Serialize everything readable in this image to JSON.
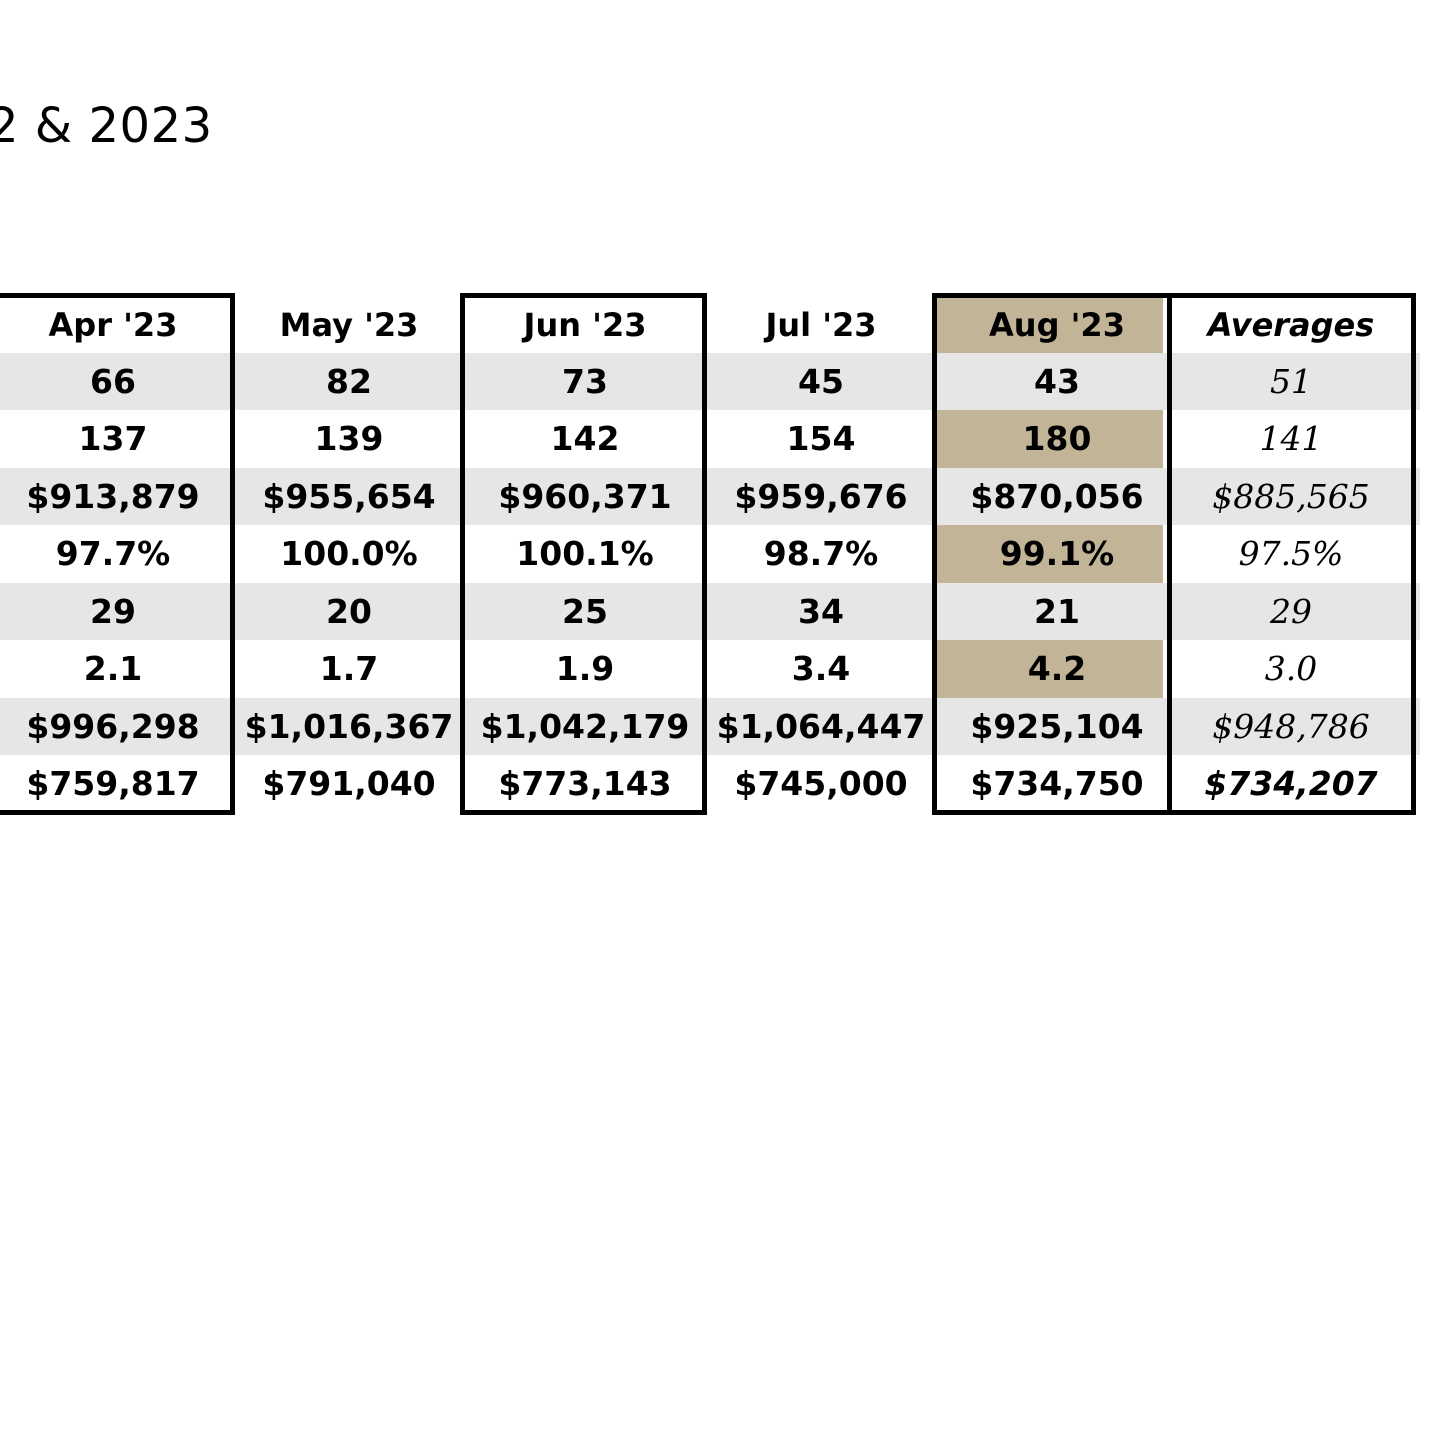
{
  "title": "2 & 2023",
  "columns": [
    {
      "label": "Apr '23",
      "values": [
        "66",
        "137",
        "$913,879",
        "97.7%",
        "29",
        "2.1",
        "$996,298",
        "$759,817"
      ]
    },
    {
      "label": "May '23",
      "values": [
        "82",
        "139",
        "$955,654",
        "100.0%",
        "20",
        "1.7",
        "$1,016,367",
        "$791,040"
      ]
    },
    {
      "label": "Jun '23",
      "values": [
        "73",
        "142",
        "$960,371",
        "100.1%",
        "25",
        "1.9",
        "$1,042,179",
        "$773,143"
      ]
    },
    {
      "label": "Jul '23",
      "values": [
        "45",
        "154",
        "$959,676",
        "98.7%",
        "34",
        "3.4",
        "$1,064,447",
        "$745,000"
      ]
    },
    {
      "label": "Aug '23",
      "values": [
        "43",
        "180",
        "$870,056",
        "99.1%",
        "21",
        "4.2",
        "$925,104",
        "$734,750"
      ]
    },
    {
      "label": "Averages",
      "values": [
        "51",
        "141",
        "$885,565",
        "97.5%",
        "29",
        "3.0",
        "$948,786",
        "$734,207"
      ]
    }
  ],
  "colors": {
    "highlight_gold": "#c2b497",
    "row_shade": "#e6e6e6",
    "border": "#000000"
  }
}
